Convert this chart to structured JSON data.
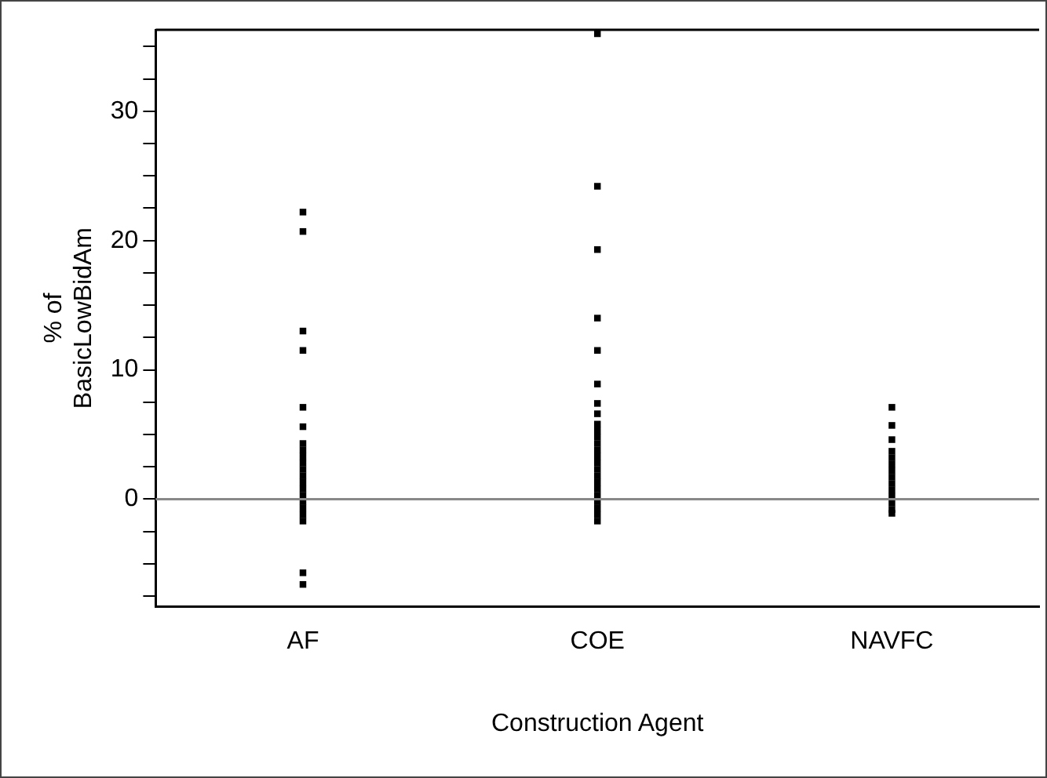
{
  "chart_data": {
    "type": "scatter",
    "xlabel": "Construction Agent",
    "ylabel": "% of\nBasicLowBidAm",
    "categories": [
      "AF",
      "COE",
      "NAVFC"
    ],
    "series": [
      {
        "color": "#000000",
        "x": [
          "AF",
          "AF",
          "AF",
          "AF",
          "AF",
          "AF",
          "AF",
          "AF",
          "AF",
          "AF",
          "AF",
          "AF",
          "AF",
          "AF",
          "AF",
          "AF",
          "AF",
          "AF",
          "AF",
          "AF",
          "AF",
          "COE",
          "COE",
          "COE",
          "COE",
          "COE",
          "COE",
          "COE",
          "COE",
          "COE",
          "COE",
          "COE",
          "COE",
          "COE",
          "COE",
          "COE",
          "COE",
          "COE",
          "COE",
          "COE",
          "COE",
          "COE",
          "COE",
          "COE",
          "COE",
          "NAVFC",
          "NAVFC",
          "NAVFC",
          "NAVFC",
          "NAVFC",
          "NAVFC",
          "NAVFC",
          "NAVFC",
          "NAVFC",
          "NAVFC",
          "NAVFC",
          "NAVFC",
          "NAVFC",
          "NAVFC"
        ],
        "values": [
          22.2,
          20.7,
          13.0,
          11.5,
          7.1,
          5.6,
          4.3,
          3.8,
          3.3,
          2.8,
          2.3,
          1.8,
          1.3,
          0.8,
          0.3,
          -0.2,
          -0.7,
          -1.2,
          -1.7,
          -5.7,
          -6.6,
          36,
          24.2,
          19.3,
          14.0,
          11.5,
          8.9,
          7.4,
          6.6,
          5.8,
          5.3,
          4.8,
          4.3,
          3.8,
          3.3,
          2.8,
          2.3,
          1.8,
          1.3,
          0.8,
          0.3,
          -0.2,
          -0.7,
          -1.2,
          -1.7,
          7.1,
          5.7,
          4.6,
          3.7,
          3.2,
          2.7,
          2.2,
          1.7,
          1.2,
          0.7,
          0.2,
          -0.3,
          -0.8,
          -1.1
        ]
      }
    ],
    "ylim": [
      -8.3,
      36.3
    ],
    "yticks": [
      {
        "value": -7.5,
        "label": null
      },
      {
        "value": -5,
        "label": null
      },
      {
        "value": -2.5,
        "label": null
      },
      0,
      {
        "value": 2.5,
        "label": null
      },
      {
        "value": 5,
        "label": null
      },
      {
        "value": 7.5,
        "label": null
      },
      10,
      {
        "value": 12.5,
        "label": null
      },
      {
        "value": 15,
        "label": null
      },
      {
        "value": 17.5,
        "label": null
      },
      20,
      {
        "value": 22.5,
        "label": null
      },
      {
        "value": 25,
        "label": null
      },
      {
        "value": 27.5,
        "label": null
      },
      30,
      {
        "value": 32.5,
        "label": null
      },
      {
        "value": 35,
        "label": null
      }
    ],
    "ref_lines": [
      {
        "axis": "y",
        "value": 0,
        "color": "#888888"
      }
    ],
    "marker": "square",
    "grid": false,
    "legend": false
  }
}
